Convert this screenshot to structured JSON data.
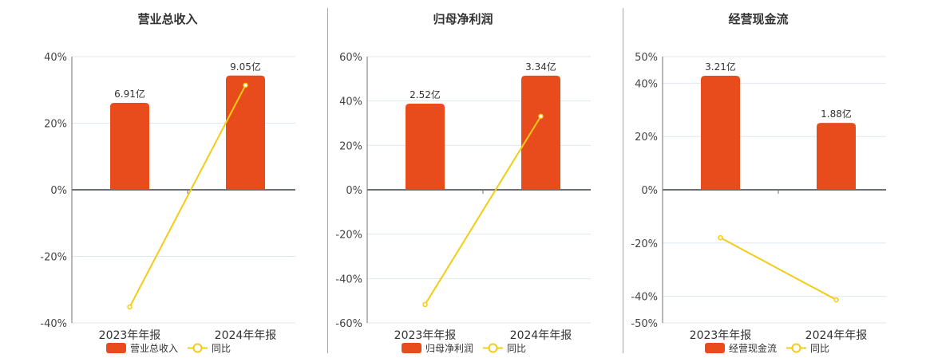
{
  "chart_data": [
    {
      "type": "bar",
      "title": "营业总收入",
      "categories": [
        "2023年年报",
        "2024年年报"
      ],
      "yticks": [
        40,
        20,
        0,
        -20,
        -40
      ],
      "ytick_labels": [
        "40%",
        "20%",
        "0%",
        "-20%",
        "-40%"
      ],
      "ylim": [
        -40,
        40
      ],
      "series": [
        {
          "name": "营业总收入",
          "kind": "bar",
          "color": "#e84c1c",
          "labels": [
            "6.91亿",
            "9.05亿"
          ],
          "values_raw": [
            6.91,
            9.05
          ],
          "values_plot": [
            26.1,
            34.3
          ]
        },
        {
          "name": "同比",
          "kind": "line",
          "color": "#f2cc15",
          "values": [
            -35.2,
            31.4
          ]
        }
      ],
      "legend_position": "bottom"
    },
    {
      "type": "bar",
      "title": "归母净利润",
      "categories": [
        "2023年年报",
        "2024年年报"
      ],
      "yticks": [
        60,
        40,
        20,
        0,
        -20,
        -40,
        -60
      ],
      "ytick_labels": [
        "60%",
        "40%",
        "20%",
        "0%",
        "-20%",
        "-40%",
        "-60%"
      ],
      "ylim": [
        -60,
        60
      ],
      "series": [
        {
          "name": "归母净利润",
          "kind": "bar",
          "color": "#e84c1c",
          "labels": [
            "2.52亿",
            "3.34亿"
          ],
          "values_raw": [
            2.52,
            3.34
          ],
          "values_plot": [
            38.8,
            51.4
          ]
        },
        {
          "name": "同比",
          "kind": "line",
          "color": "#f2cc15",
          "values": [
            -51.7,
            33.1
          ]
        }
      ],
      "legend_position": "bottom"
    },
    {
      "type": "bar",
      "title": "经营现金流",
      "categories": [
        "2023年年报",
        "2024年年报"
      ],
      "yticks": [
        50,
        40,
        20,
        0,
        -20,
        -40,
        -50
      ],
      "ytick_labels": [
        "50%",
        "40%",
        "20%",
        "0%",
        "-20%",
        "-40%",
        "-50%"
      ],
      "ylim": [
        -50,
        50
      ],
      "series": [
        {
          "name": "经营现金流",
          "kind": "bar",
          "color": "#e84c1c",
          "labels": [
            "3.21亿",
            "1.88亿"
          ],
          "values_raw": [
            3.21,
            1.88
          ],
          "values_plot": [
            42.8,
            25.1
          ]
        },
        {
          "name": "同比",
          "kind": "line",
          "color": "#f2cc15",
          "values": [
            -18.0,
            -41.3
          ]
        }
      ],
      "legend_position": "bottom"
    }
  ],
  "panels": [
    {
      "title": "营业总收入",
      "legend_bar": "营业总收入",
      "legend_line": "同比",
      "x_labels": [
        "2023年年报",
        "2024年年报"
      ],
      "bar_labels": [
        "6.91亿",
        "9.05亿"
      ]
    },
    {
      "title": "归母净利润",
      "legend_bar": "归母净利润",
      "legend_line": "同比",
      "x_labels": [
        "2023年年报",
        "2024年年报"
      ],
      "bar_labels": [
        "2.52亿",
        "3.34亿"
      ]
    },
    {
      "title": "经营现金流",
      "legend_bar": "经营现金流",
      "legend_line": "同比",
      "x_labels": [
        "2023年年报",
        "2024年年报"
      ],
      "bar_labels": [
        "3.21亿",
        "1.88亿"
      ]
    }
  ],
  "colors": {
    "bar": "#e84c1c",
    "line": "#f2cc15",
    "axis": "#6e7079",
    "grid": "#e0e6f1",
    "text": "#333333",
    "divider": "#a8a8a8"
  }
}
